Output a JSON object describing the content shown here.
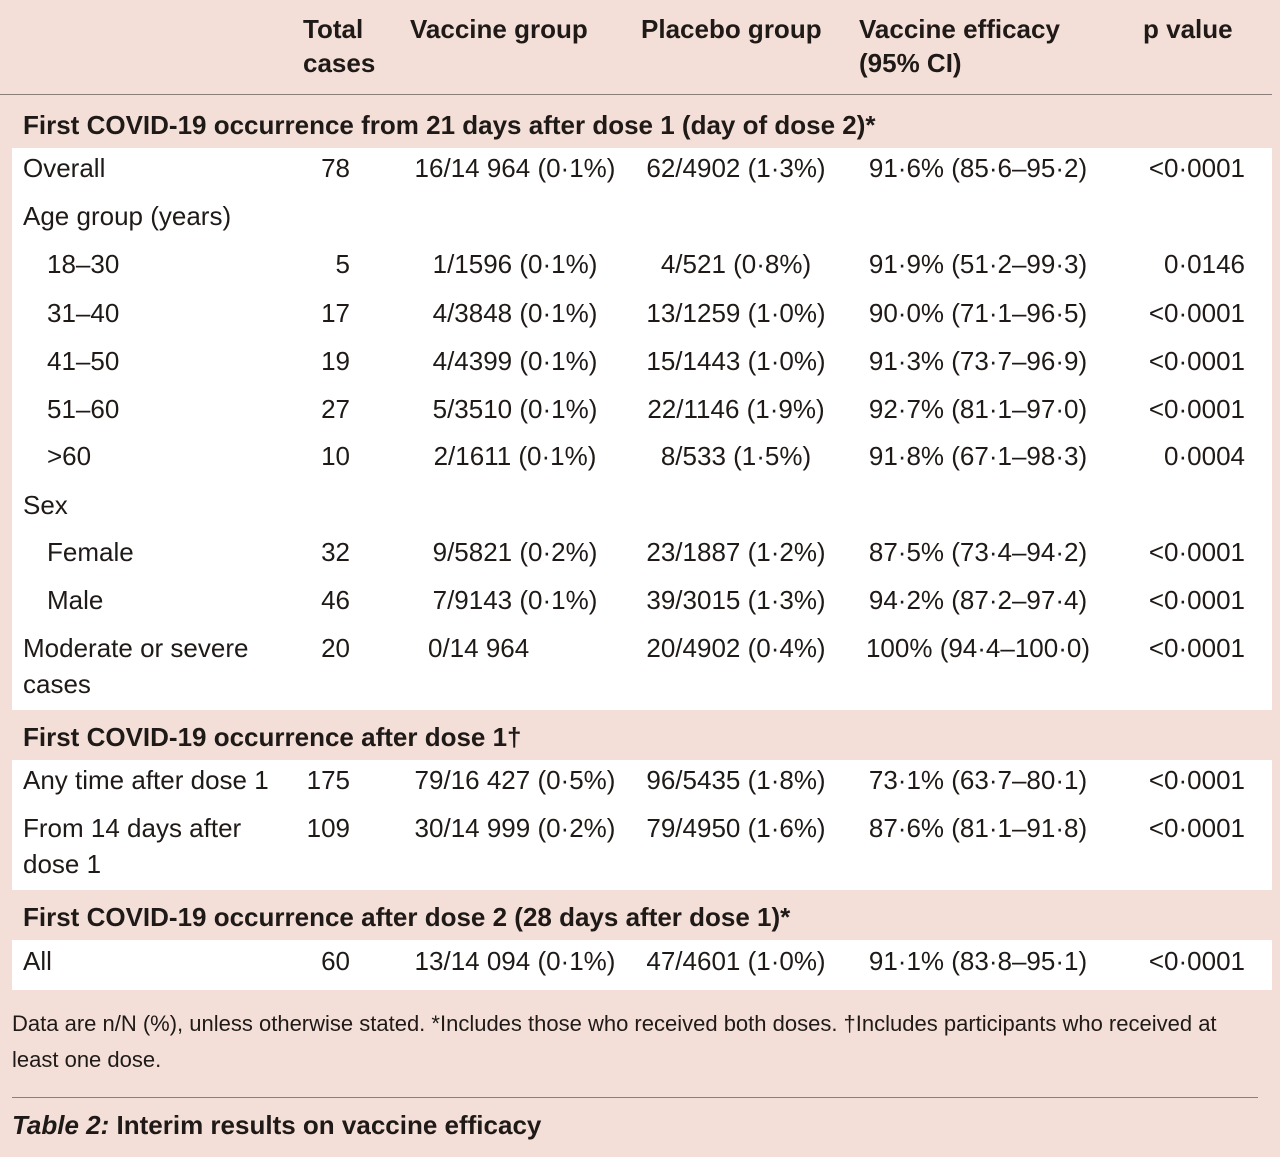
{
  "header": {
    "total_cases_1": "Total",
    "total_cases_2": "cases",
    "vaccine_group": "Vaccine group",
    "placebo_group": "Placebo group",
    "efficacy_1": "Vaccine efficacy",
    "efficacy_2": "(95% CI)",
    "p_value": "p value"
  },
  "sections": [
    {
      "title": "First COVID-19 occurrence from 21 days after dose 1 (day of dose 2)*",
      "rows": [
        {
          "label": "Overall",
          "total": "78",
          "vaccine": "16/14 964 (0·1%)",
          "placebo": "62/4902 (1·3%)",
          "efficacy": "91·6% (85·6–95·2)",
          "p": "<0·0001"
        },
        {
          "label": "Age group (years)",
          "total": "",
          "vaccine": "",
          "placebo": "",
          "efficacy": "",
          "p": ""
        },
        {
          "label": "18–30",
          "total": "5",
          "vaccine": "1/1596 (0·1%)",
          "placebo": "4/521 (0·8%)",
          "efficacy": "91·9% (51·2–99·3)",
          "p": "0·0146"
        },
        {
          "label": "31–40",
          "total": "17",
          "vaccine": "4/3848 (0·1%)",
          "placebo": "13/1259 (1·0%)",
          "efficacy": "90·0% (71·1–96·5)",
          "p": "<0·0001"
        },
        {
          "label": "41–50",
          "total": "19",
          "vaccine": "4/4399 (0·1%)",
          "placebo": "15/1443 (1·0%)",
          "efficacy": "91·3% (73·7–96·9)",
          "p": "<0·0001"
        },
        {
          "label": "51–60",
          "total": "27",
          "vaccine": "5/3510 (0·1%)",
          "placebo": "22/1146 (1·9%)",
          "efficacy": "92·7% (81·1–97·0)",
          "p": "<0·0001"
        },
        {
          "label": ">60",
          "total": "10",
          "vaccine": "2/1611 (0·1%)",
          "placebo": "8/533 (1·5%)",
          "efficacy": "91·8% (67·1–98·3)",
          "p": "0·0004"
        },
        {
          "label": "Sex",
          "total": "",
          "vaccine": "",
          "placebo": "",
          "efficacy": "",
          "p": ""
        },
        {
          "label": "Female",
          "total": "32",
          "vaccine": "9/5821 (0·2%)",
          "placebo": "23/1887 (1·2%)",
          "efficacy": "87·5% (73·4–94·2)",
          "p": "<0·0001"
        },
        {
          "label": "Male",
          "total": "46",
          "vaccine": "7/9143 (0·1%)",
          "placebo": "39/3015 (1·3%)",
          "efficacy": "94·2% (87·2–97·4)",
          "p": "<0·0001"
        },
        {
          "label": "Moderate or severe cases",
          "total": "20",
          "vaccine": "0/14 964",
          "placebo": "20/4902 (0·4%)",
          "efficacy": "100% (94·4–100·0)",
          "p": "<0·0001"
        }
      ]
    },
    {
      "title": "First COVID-19 occurrence after dose 1†",
      "rows": [
        {
          "label": "Any time after dose 1",
          "total": "175",
          "vaccine": "79/16 427 (0·5%)",
          "placebo": "96/5435 (1·8%)",
          "efficacy": "73·1% (63·7–80·1)",
          "p": "<0·0001"
        },
        {
          "label": "From 14 days after dose 1",
          "total": "109",
          "vaccine": "30/14 999 (0·2%)",
          "placebo": "79/4950 (1·6%)",
          "efficacy": "87·6% (81·1–91·8)",
          "p": "<0·0001"
        }
      ]
    },
    {
      "title": "First COVID-19 occurrence after dose 2 (28 days after dose 1)*",
      "rows": [
        {
          "label": "All",
          "total": "60",
          "vaccine": "13/14 094 (0·1%)",
          "placebo": "47/4601 (1·0%)",
          "efficacy": "91·1% (83·8–95·1)",
          "p": "<0·0001"
        }
      ]
    }
  ],
  "footnote": "Data are n/N (%), unless otherwise stated. *Includes those who received both doses. †Includes participants who received at least one dose.",
  "caption": {
    "label": "Table 2:",
    "text": " Interim results on vaccine efficacy"
  }
}
